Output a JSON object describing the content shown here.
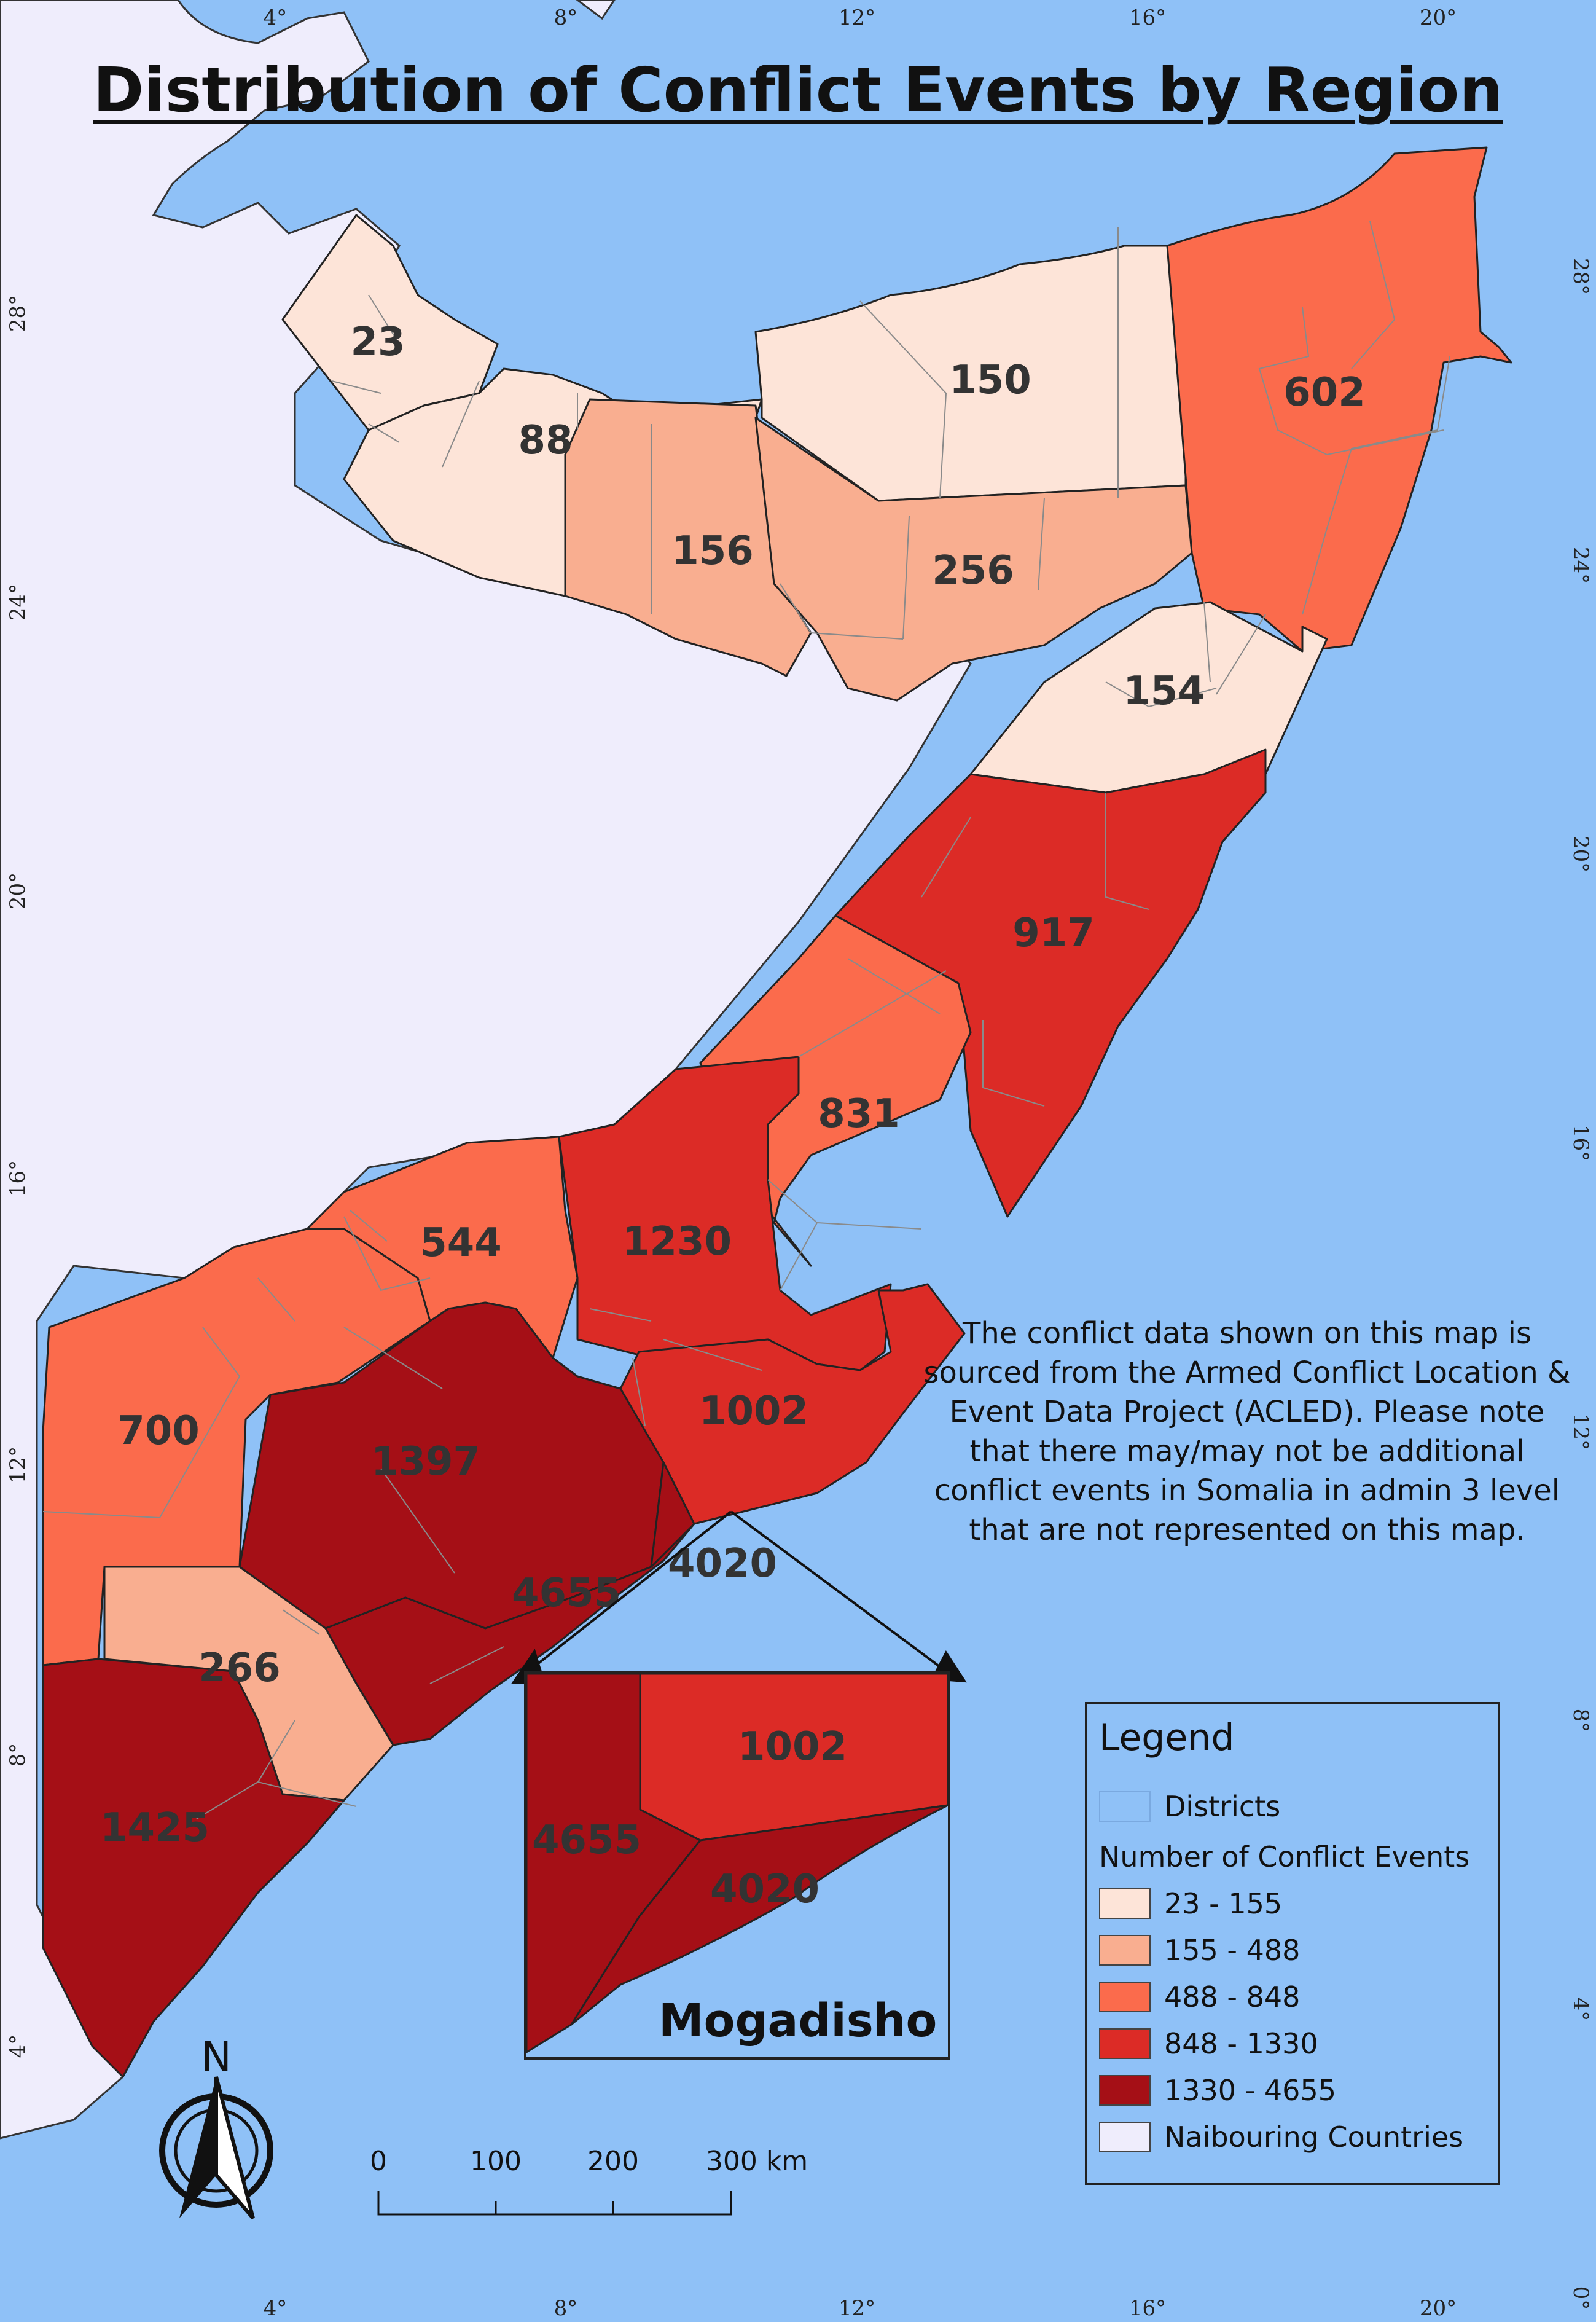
{
  "title": "Distribution of Conflict Events by Region",
  "regions": [
    {
      "value": "23",
      "bin": 0
    },
    {
      "value": "88",
      "bin": 0
    },
    {
      "value": "150",
      "bin": 0
    },
    {
      "value": "602",
      "bin": 2
    },
    {
      "value": "156",
      "bin": 1
    },
    {
      "value": "256",
      "bin": 1
    },
    {
      "value": "154",
      "bin": 0
    },
    {
      "value": "917",
      "bin": 3
    },
    {
      "value": "831",
      "bin": 2
    },
    {
      "value": "544",
      "bin": 2
    },
    {
      "value": "1230",
      "bin": 3
    },
    {
      "value": "1002",
      "bin": 3
    },
    {
      "value": "700",
      "bin": 2
    },
    {
      "value": "1397",
      "bin": 4
    },
    {
      "value": "4655",
      "bin": 4
    },
    {
      "value": "4020",
      "bin": 4
    },
    {
      "value": "266",
      "bin": 1
    },
    {
      "value": "1425",
      "bin": 4
    }
  ],
  "inset": {
    "title": "Mogadisho",
    "labels": [
      "1002",
      "4655",
      "4020"
    ]
  },
  "note": "The conflict data shown on this map is sourced from the Armed Conflict Location & Event Data Project (ACLED). Please note that there may/may not be additional conflict events in Somalia in admin 3 level that are not represented on this map.",
  "legend": {
    "title": "Legend",
    "districts": "Districts",
    "subtitle": "Number of Conflict Events",
    "bins": [
      {
        "label": "23 - 155",
        "color": "#fde4d8"
      },
      {
        "label": "155 - 488",
        "color": "#f9ae90"
      },
      {
        "label": "488 - 848",
        "color": "#fb6b4c"
      },
      {
        "label": "848 - 1330",
        "color": "#dc2b26"
      },
      {
        "label": "1330 - 4655",
        "color": "#a50f16"
      }
    ],
    "neighbours": "Naibouring Countries",
    "neighbours_color": "#efedfc",
    "districts_color": "#8fc1f7"
  },
  "north_arrow": "N",
  "scale_bar": {
    "ticks": [
      "0",
      "100",
      "200",
      "300 km"
    ]
  },
  "graticule": {
    "top": [
      "4°",
      "8°",
      "12°",
      "16°",
      "20°"
    ],
    "bottom": [
      "4°",
      "8°",
      "12°",
      "16°",
      "20°"
    ],
    "left": [
      "28°",
      "24°",
      "20°",
      "16°",
      "12°",
      "8°",
      "4°"
    ],
    "right": [
      "28°",
      "24°",
      "20°",
      "16°",
      "12°",
      "8°",
      "4°",
      "0°"
    ]
  },
  "colors": {
    "sea": "#8fc1f7",
    "land": "#efedfc",
    "border": "#222222"
  }
}
